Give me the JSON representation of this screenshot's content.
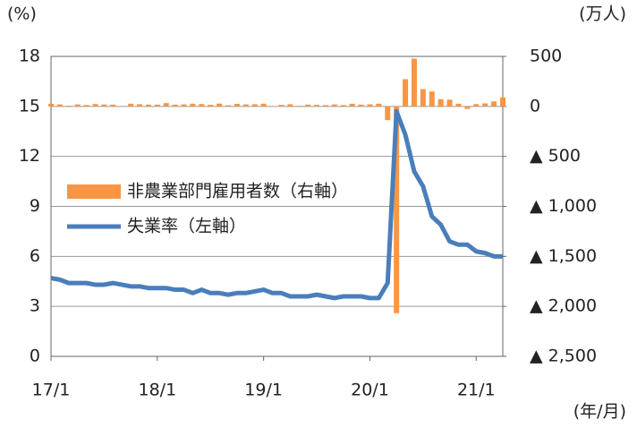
{
  "chart_data": {
    "type": "bar-line",
    "ylabel": "(%)",
    "y2label": "(万人)",
    "xlabel": "(年/月)",
    "categories": [
      "17/1",
      null,
      null,
      null,
      null,
      null,
      null,
      null,
      null,
      null,
      null,
      null,
      "18/1",
      null,
      null,
      null,
      null,
      null,
      null,
      null,
      null,
      null,
      null,
      null,
      "19/1",
      null,
      null,
      null,
      null,
      null,
      null,
      null,
      null,
      null,
      null,
      null,
      "20/1",
      null,
      null,
      null,
      null,
      null,
      null,
      null,
      null,
      null,
      null,
      null,
      "21/1",
      null,
      null,
      null
    ],
    "series": [
      {
        "name": "非農業部門雇用者数（右軸）",
        "color": "#f79646",
        "axis": "y2",
        "kind": "bar",
        "values": [
          26,
          20,
          7,
          20,
          14,
          24,
          19,
          18,
          1,
          27,
          22,
          18,
          18,
          33,
          18,
          20,
          27,
          23,
          16,
          28,
          11,
          25,
          20,
          22,
          27,
          1,
          15,
          22,
          6,
          18,
          15,
          13,
          20,
          13,
          26,
          18,
          21,
          27,
          -137,
          -2068,
          272,
          478,
          173,
          149,
          72,
          68,
          26,
          -25,
          23,
          30,
          50,
          90
        ]
      },
      {
        "name": "失業率（左軸）",
        "color": "#4a7ebb",
        "kind": "line",
        "values": [
          4.7,
          4.6,
          4.4,
          4.4,
          4.4,
          4.3,
          4.3,
          4.4,
          4.3,
          4.2,
          4.2,
          4.1,
          4.1,
          4.1,
          4.0,
          4.0,
          3.8,
          4.0,
          3.8,
          3.8,
          3.7,
          3.8,
          3.8,
          3.9,
          4.0,
          3.8,
          3.8,
          3.6,
          3.6,
          3.6,
          3.7,
          3.6,
          3.5,
          3.6,
          3.6,
          3.6,
          3.5,
          3.5,
          4.4,
          14.7,
          13.3,
          11.1,
          10.2,
          8.4,
          7.9,
          6.9,
          6.7,
          6.7,
          6.3,
          6.2,
          6.0,
          6.0
        ]
      }
    ],
    "ylim": [
      0,
      18
    ],
    "yticks": [
      0,
      3,
      6,
      9,
      12,
      15,
      18
    ],
    "y2lim": [
      -2500,
      500
    ],
    "y2ticks": [
      500,
      0,
      {
        "value": -500,
        "label": "▲ 500"
      },
      {
        "value": -1000,
        "label": "▲ 1,000"
      },
      {
        "value": -1500,
        "label": "▲ 1,500"
      },
      {
        "value": -2000,
        "label": "▲ 2,000"
      },
      {
        "value": -2500,
        "label": "▲ 2,500"
      }
    ],
    "grid": true
  }
}
